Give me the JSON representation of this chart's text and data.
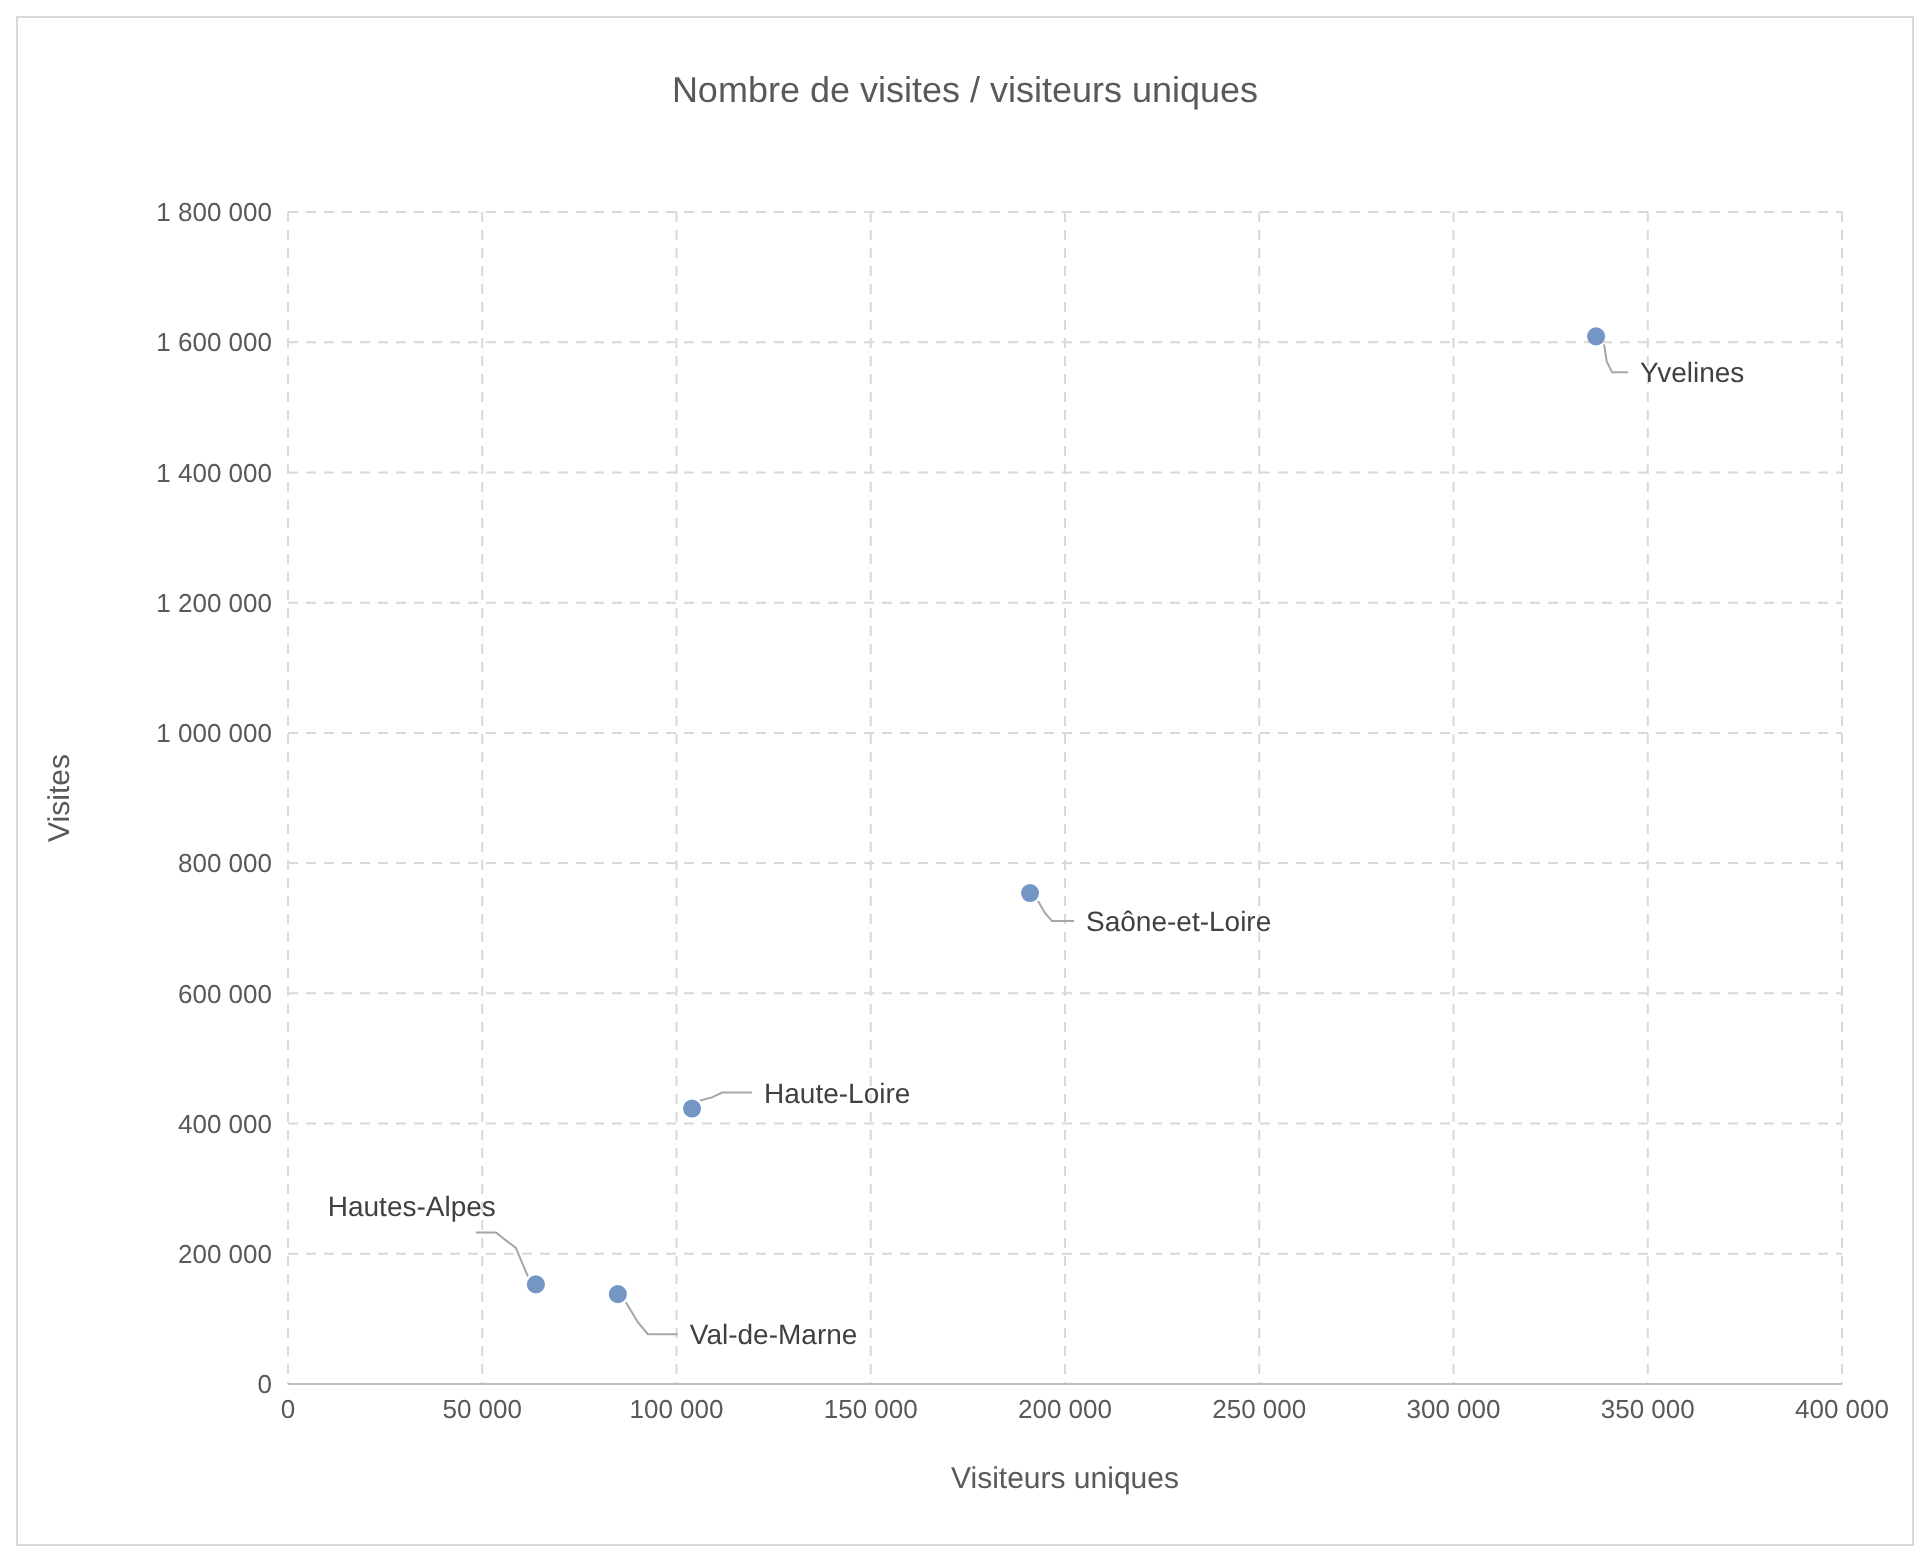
{
  "chart_data": {
    "type": "scatter",
    "title": "Nombre de visites / visiteurs uniques",
    "xlabel": "Visiteurs uniques",
    "ylabel": "Visites",
    "x": [
      336700,
      191000,
      104000,
      63800,
      84900
    ],
    "series": [
      {
        "color": "#7396c4",
        "values": [
          1609000,
          754000,
          423000,
          153000,
          138000
        ]
      }
    ],
    "marker": "circle",
    "grid": true,
    "legend": false,
    "xlim": [
      0,
      400000
    ],
    "xticks": [
      0,
      {
        "value": 50000,
        "label": "50 000"
      },
      {
        "value": 100000,
        "label": "100 000"
      },
      {
        "value": 150000,
        "label": "150 000"
      },
      {
        "value": 200000,
        "label": "200 000"
      },
      {
        "value": 250000,
        "label": "250 000"
      },
      {
        "value": 300000,
        "label": "300 000"
      },
      {
        "value": 350000,
        "label": "350 000"
      },
      {
        "value": 400000,
        "label": "400 000"
      }
    ],
    "ylim": [
      0,
      1800000
    ],
    "yticks": [
      0,
      {
        "value": 200000,
        "label": "200 000"
      },
      {
        "value": 400000,
        "label": "400 000"
      },
      {
        "value": 600000,
        "label": "600 000"
      },
      {
        "value": 800000,
        "label": "800 000"
      },
      {
        "value": 1000000,
        "label": "1 000 000"
      },
      {
        "value": 1200000,
        "label": "1 200 000"
      },
      {
        "value": 1400000,
        "label": "1 400 000"
      },
      {
        "value": 1600000,
        "label": "1 600 000"
      },
      {
        "value": 1800000,
        "label": "1 800 000"
      }
    ],
    "annotations": [
      {
        "text": "Yvelines",
        "x": 336700,
        "y": 1609000
      },
      {
        "text": "Saône-et-Loire",
        "x": 191000,
        "y": 754000
      },
      {
        "text": "Haute-Loire",
        "x": 104000,
        "y": 423000
      },
      {
        "text": "Hautes-Alpes",
        "x": 63800,
        "y": 153000
      },
      {
        "text": "Val-de-Marne",
        "x": 84900,
        "y": 138000
      }
    ]
  }
}
